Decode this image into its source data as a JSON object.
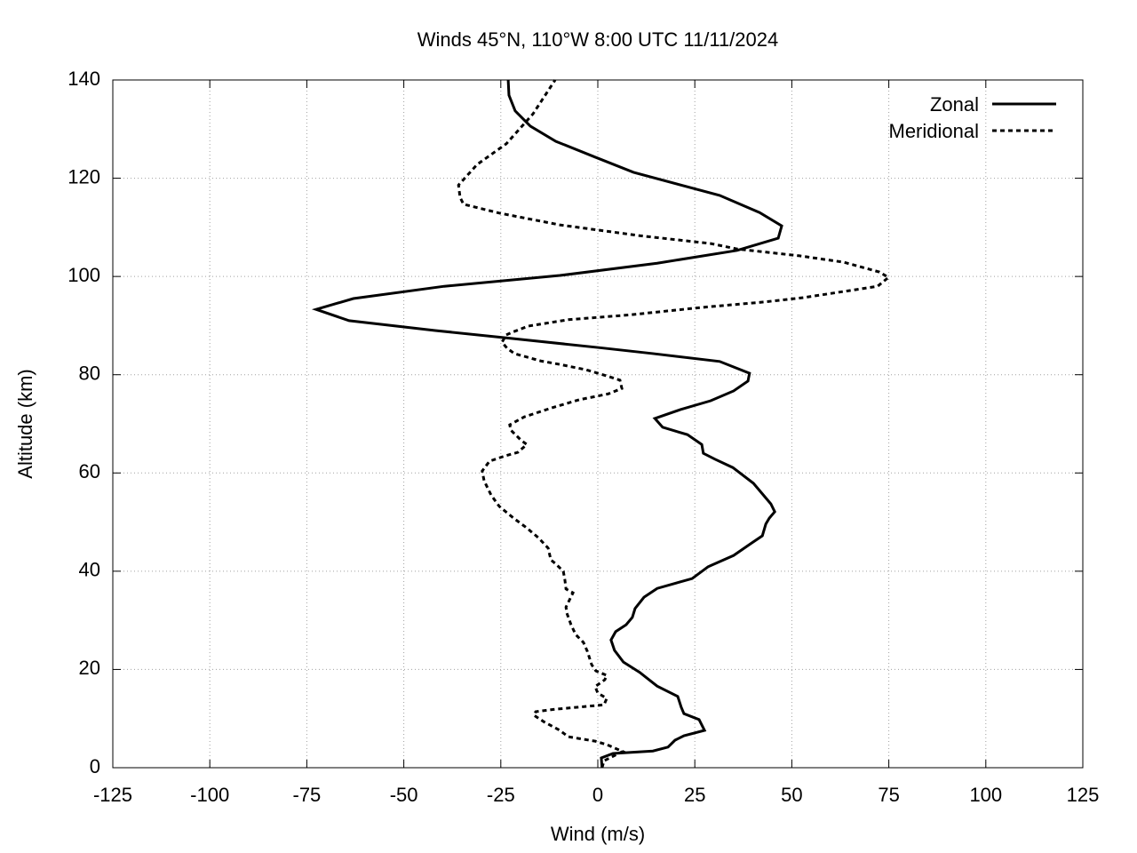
{
  "chart_data": {
    "type": "line",
    "title": "Winds 45°N, 110°W 8:00 UTC 11/11/2024",
    "x_label": "Wind (m/s)",
    "y_label": "Altitude (km)",
    "xlim": [
      -125,
      125
    ],
    "ylim": [
      0,
      140
    ],
    "xticks": [
      -125,
      -100,
      -75,
      -50,
      -25,
      0,
      25,
      50,
      75,
      100,
      125
    ],
    "yticks": [
      0,
      20,
      40,
      60,
      80,
      100,
      120,
      140
    ],
    "grid": true,
    "legend": "top-right",
    "series": [
      {
        "name": "Zonal",
        "color": "#000000",
        "dash": "solid",
        "x": [
          1.1,
          0.9,
          3.9,
          14.2,
          18.1,
          19.9,
          22.2,
          27.5,
          26.1,
          22.2,
          21.5,
          20.6,
          15.3,
          10.8,
          6.6,
          4.3,
          3.4,
          4.6,
          7.3,
          8.9,
          9.6,
          11.9,
          15.3,
          24.3,
          28.4,
          35.0,
          39.4,
          42.4,
          43.3,
          44.2,
          45.6,
          44.6,
          40.1,
          34.8,
          30.2,
          27.2,
          26.8,
          23.1,
          16.7,
          14.7,
          21.3,
          29.1,
          35.0,
          38.7,
          39.1,
          31.4,
          14.2,
          0.5,
          -23.6,
          -41.9,
          -64.1,
          -72.6,
          -63.0,
          -39.6,
          -9.8,
          15.3,
          35.9,
          46.5,
          47.4,
          41.7,
          31.4,
          9.2,
          -0.7,
          -10.8,
          -17.4,
          -21.3,
          -22.9,
          -23.1
        ],
        "y": [
          0,
          2.0,
          2.9,
          3.4,
          4.2,
          5.6,
          6.5,
          7.6,
          9.8,
          11.0,
          12.3,
          14.5,
          16.6,
          19.4,
          21.5,
          23.9,
          26.0,
          27.7,
          29.1,
          30.6,
          32.4,
          34.7,
          36.5,
          38.5,
          40.9,
          43.2,
          45.6,
          47.2,
          49.6,
          50.8,
          52.1,
          53.7,
          57.9,
          61.1,
          62.8,
          64.0,
          65.8,
          67.8,
          69.3,
          71.1,
          72.9,
          74.7,
          76.7,
          78.7,
          80.3,
          82.7,
          84.3,
          85.5,
          87.5,
          89.0,
          91.0,
          93.3,
          95.5,
          98.0,
          100.2,
          102.7,
          105.3,
          107.8,
          110.3,
          113.0,
          116.5,
          121.2,
          124.3,
          127.5,
          130.6,
          133.7,
          136.9,
          140
        ]
      },
      {
        "name": "Meridional",
        "color": "#000000",
        "dash": "dashed",
        "x": [
          1.1,
          1.6,
          6.4,
          2.3,
          -0.7,
          -7.6,
          -9.8,
          -14.0,
          -16.5,
          -16.0,
          -11.0,
          1.6,
          2.3,
          0.0,
          -0.7,
          1.8,
          2.3,
          -0.5,
          -1.6,
          -2.7,
          -3.7,
          -5.7,
          -6.9,
          -8.0,
          -8.2,
          -6.4,
          -8.2,
          -8.5,
          -8.9,
          -11.0,
          -12.1,
          -12.8,
          -15.3,
          -18.3,
          -21.7,
          -25.4,
          -27.5,
          -29.3,
          -29.8,
          -27.9,
          -23.8,
          -20.6,
          -18.3,
          -19.7,
          -22.4,
          -22.7,
          -19.0,
          -11.7,
          -4.8,
          2.7,
          6.2,
          5.7,
          2.1,
          -3.0,
          -9.8,
          -14.7,
          -21.5,
          -23.4,
          -24.7,
          -23.6,
          -22.2,
          -17.9,
          -7.6,
          8.5,
          26.8,
          42.8,
          53.1,
          72.1,
          74.9,
          72.6,
          63.4,
          52.0,
          35.9,
          29.1,
          10.8,
          -9.8,
          -25.4,
          -34.6,
          -35.5,
          -35.9,
          -31.1,
          -23.6,
          -16.7,
          -11.0
        ],
        "y": [
          0,
          1.4,
          3.3,
          4.7,
          5.4,
          6.3,
          7.6,
          9.4,
          10.7,
          11.4,
          11.9,
          12.8,
          14.1,
          15.2,
          16.5,
          17.9,
          18.8,
          19.7,
          21.0,
          23.7,
          25.5,
          27.1,
          29.1,
          31.5,
          32.7,
          35.6,
          36.4,
          38.3,
          40.0,
          41.6,
          42.3,
          44.7,
          46.8,
          48.8,
          50.8,
          53.2,
          55.5,
          58.4,
          60.4,
          62.4,
          63.5,
          64.2,
          65.8,
          66.6,
          68.7,
          69.8,
          71.4,
          73.3,
          74.9,
          76.1,
          77.2,
          78.9,
          79.8,
          81.0,
          82.1,
          82.8,
          84.3,
          85.4,
          86.6,
          88.1,
          88.6,
          89.9,
          91.2,
          92.2,
          93.7,
          94.8,
          95.7,
          98.0,
          99.8,
          100.9,
          102.9,
          104.2,
          105.6,
          106.7,
          108.3,
          110.5,
          112.9,
          114.7,
          116.1,
          118.6,
          122.8,
          127.0,
          133.1,
          140
        ]
      }
    ]
  }
}
